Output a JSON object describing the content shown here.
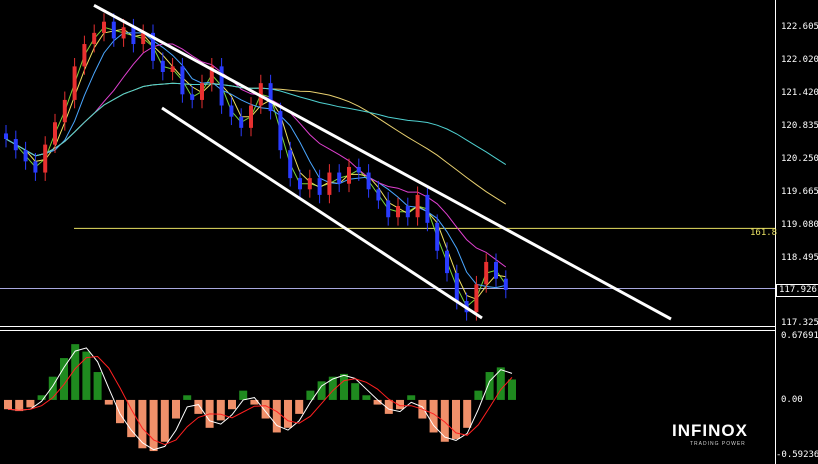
{
  "chart_data": [
    {
      "type": "candlestick",
      "panel": "price",
      "y_axis_ticks": [
        "122.605",
        "122.020",
        "121.420",
        "120.835",
        "120.250",
        "119.665",
        "119.080",
        "118.495",
        "117.926",
        "117.325"
      ],
      "ylim": [
        117.325,
        122.605
      ],
      "current_price": "117.926",
      "fib_level": {
        "label": "161.8",
        "value": 119.0
      },
      "candles_close": [
        120.6,
        120.4,
        120.2,
        120.0,
        120.5,
        120.9,
        121.3,
        121.9,
        122.3,
        122.5,
        122.7,
        122.4,
        122.6,
        122.3,
        122.5,
        122.0,
        121.8,
        121.9,
        121.4,
        121.3,
        121.6,
        121.9,
        121.2,
        121.0,
        120.8,
        121.2,
        121.6,
        121.1,
        120.4,
        119.9,
        119.7,
        119.9,
        119.6,
        120.0,
        119.8,
        120.1,
        120.0,
        119.7,
        119.5,
        119.2,
        119.4,
        119.2,
        119.6,
        119.1,
        118.6,
        118.2,
        117.7,
        117.5,
        118.0,
        118.4,
        118.1,
        117.9
      ],
      "series": [
        {
          "name": "",
          "color": "#7cd63a"
        },
        {
          "name": "",
          "color": "#f0e060"
        },
        {
          "name": "",
          "color": "#4aa6ff"
        },
        {
          "name": "",
          "color": "#e040d0"
        },
        {
          "name": "",
          "color": "#e8d070"
        },
        {
          "name": "",
          "color": "#4fd0d0"
        }
      ],
      "trend_channel": {
        "upper": [
          [
            0,
            122.6
          ],
          [
            52,
            117.5
          ]
        ],
        "lower": [
          [
            13,
            121.4
          ],
          [
            40,
            117.4
          ]
        ]
      }
    },
    {
      "type": "bar",
      "panel": "macd",
      "y_axis_ticks": [
        "0.67691",
        "0.00",
        "-0.59236"
      ],
      "ylim": [
        -0.59236,
        0.67691
      ],
      "values": [
        -0.1,
        -0.12,
        -0.08,
        0.05,
        0.25,
        0.45,
        0.6,
        0.52,
        0.3,
        -0.05,
        -0.25,
        -0.4,
        -0.52,
        -0.55,
        -0.45,
        -0.2,
        0.05,
        -0.15,
        -0.3,
        -0.22,
        -0.1,
        0.1,
        -0.05,
        -0.2,
        -0.35,
        -0.3,
        -0.15,
        0.1,
        0.2,
        0.25,
        0.28,
        0.18,
        0.05,
        -0.05,
        -0.15,
        -0.1,
        0.05,
        -0.2,
        -0.35,
        -0.45,
        -0.42,
        -0.3,
        0.1,
        0.3,
        0.35,
        0.22
      ],
      "series": [
        {
          "name": "",
          "color": "#ffffff"
        },
        {
          "name": "",
          "color": "#ff2020"
        }
      ]
    }
  ],
  "branding": {
    "logo_text": "INFINOX",
    "logo_sub": "TRADING POWER"
  }
}
